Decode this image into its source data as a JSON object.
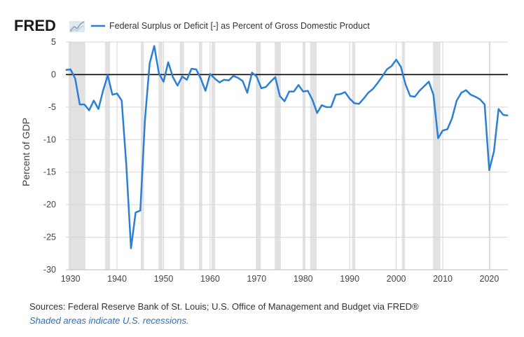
{
  "brand": "FRED",
  "brand_icon": "fred-line-chart-icon",
  "colors": {
    "line": "#2c7fd6",
    "recession": "#e2e2e2",
    "grid": "#d6d6d6",
    "zero": "#000000"
  },
  "footer": {
    "sources": "Sources: Federal Reserve Bank of St. Louis; U.S. Office of Management and Budget via FRED®",
    "note": "Shaded areas indicate U.S. recessions."
  },
  "chart_data": {
    "type": "line",
    "title": "",
    "xlabel": "",
    "ylabel": "Percent of GDP",
    "xlim": [
      1929,
      2024
    ],
    "ylim": [
      -30,
      5
    ],
    "xticks": [
      1930,
      1940,
      1950,
      1960,
      1970,
      1980,
      1990,
      2000,
      2010,
      2020
    ],
    "yticks": [
      5,
      0,
      -5,
      -10,
      -15,
      -20,
      -25,
      -30
    ],
    "grid": true,
    "legend": "top",
    "recessions": [
      [
        1929.6,
        1933.2
      ],
      [
        1937.4,
        1938.5
      ],
      [
        1945.1,
        1945.8
      ],
      [
        1948.9,
        1949.8
      ],
      [
        1953.5,
        1954.4
      ],
      [
        1957.6,
        1958.3
      ],
      [
        1960.3,
        1961.1
      ],
      [
        1969.9,
        1970.9
      ],
      [
        1973.9,
        1975.2
      ],
      [
        1980.0,
        1980.5
      ],
      [
        1981.5,
        1982.9
      ],
      [
        1990.5,
        1991.2
      ],
      [
        2001.2,
        2001.9
      ],
      [
        2007.9,
        2009.5
      ],
      [
        2020.1,
        2020.3
      ]
    ],
    "series": [
      {
        "name": "Federal Surplus or Deficit [-] as Percent of Gross Domestic Product",
        "x": [
          1929,
          1930,
          1931,
          1932,
          1933,
          1934,
          1935,
          1936,
          1937,
          1938,
          1939,
          1940,
          1941,
          1942,
          1943,
          1944,
          1945,
          1946,
          1947,
          1948,
          1949,
          1950,
          1951,
          1952,
          1953,
          1954,
          1955,
          1956,
          1957,
          1958,
          1959,
          1960,
          1961,
          1962,
          1963,
          1964,
          1965,
          1966,
          1967,
          1968,
          1969,
          1970,
          1971,
          1972,
          1973,
          1974,
          1975,
          1976,
          1977,
          1978,
          1979,
          1980,
          1981,
          1982,
          1983,
          1984,
          1985,
          1986,
          1987,
          1988,
          1989,
          1990,
          1991,
          1992,
          1993,
          1994,
          1995,
          1996,
          1997,
          1998,
          1999,
          2000,
          2001,
          2002,
          2003,
          2004,
          2005,
          2006,
          2007,
          2008,
          2009,
          2010,
          2011,
          2012,
          2013,
          2014,
          2015,
          2016,
          2017,
          2018,
          2019,
          2020,
          2021,
          2022,
          2023,
          2024
        ],
        "y": [
          0.7,
          0.8,
          -0.6,
          -4.6,
          -4.6,
          -5.5,
          -4.0,
          -5.3,
          -2.5,
          -0.1,
          -3.1,
          -2.9,
          -4.0,
          -13.9,
          -26.7,
          -21.2,
          -20.9,
          -7.0,
          1.7,
          4.4,
          0.2,
          -1.1,
          1.9,
          -0.4,
          -1.7,
          -0.3,
          -0.8,
          0.9,
          0.8,
          -0.6,
          -2.5,
          0.1,
          -0.6,
          -1.2,
          -0.8,
          -0.9,
          -0.2,
          -0.5,
          -1.0,
          -2.8,
          0.3,
          -0.3,
          -2.1,
          -1.9,
          -1.1,
          -0.4,
          -3.3,
          -4.1,
          -2.6,
          -2.6,
          -1.6,
          -2.6,
          -2.5,
          -3.9,
          -5.9,
          -4.7,
          -5.0,
          -5.0,
          -3.1,
          -3.0,
          -2.7,
          -3.7,
          -4.4,
          -4.5,
          -3.7,
          -2.8,
          -2.2,
          -1.3,
          -0.3,
          0.8,
          1.3,
          2.3,
          1.2,
          -1.5,
          -3.3,
          -3.4,
          -2.5,
          -1.8,
          -1.1,
          -3.1,
          -9.8,
          -8.6,
          -8.4,
          -6.7,
          -4.0,
          -2.8,
          -2.4,
          -3.1,
          -3.4,
          -3.8,
          -4.6,
          -14.7,
          -11.8,
          -5.3,
          -6.2,
          -6.3
        ]
      }
    ]
  }
}
